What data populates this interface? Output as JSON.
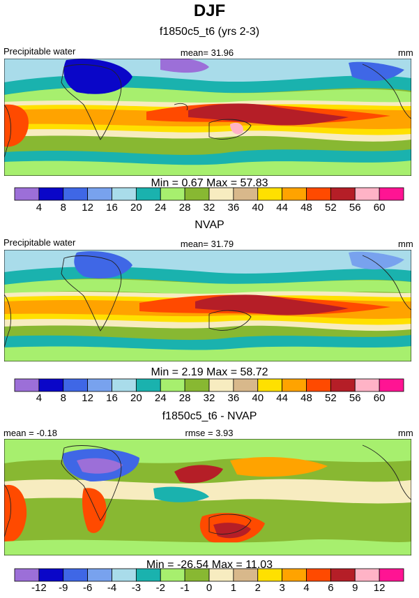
{
  "title": "DJF",
  "chart_data": [
    {
      "type": "heatmap",
      "title": "f1850c5_t6 (yrs 2-3)",
      "left_label": "Precipitable water",
      "center_label": "mean=  31.96",
      "right_label": "mm",
      "stats": "Min =   0.67 Max =  57.83",
      "min": 0.67,
      "max": 57.83,
      "mean": 31.96,
      "colorbar": {
        "levels": [
          "4",
          "8",
          "12",
          "16",
          "20",
          "24",
          "28",
          "32",
          "36",
          "40",
          "44",
          "48",
          "52",
          "56",
          "60"
        ],
        "colors": [
          "#9c6fd8",
          "#0a06c8",
          "#3f67e6",
          "#78a2ee",
          "#a9dcea",
          "#1ab2ae",
          "#a7ef6e",
          "#88b832",
          "#f7ecc0",
          "#d8b88b",
          "#ffe000",
          "#ffa300",
          "#ff4a00",
          "#b51e27",
          "#ffb3c6",
          "#ff1493"
        ]
      }
    },
    {
      "type": "heatmap",
      "title": "NVAP",
      "left_label": "Precipitable water",
      "center_label": "mean=  31.79",
      "right_label": "mm",
      "stats": "Min =   2.19 Max =  58.72",
      "min": 2.19,
      "max": 58.72,
      "mean": 31.79,
      "colorbar": {
        "levels": [
          "4",
          "8",
          "12",
          "16",
          "20",
          "24",
          "28",
          "32",
          "36",
          "40",
          "44",
          "48",
          "52",
          "56",
          "60"
        ],
        "colors": [
          "#9c6fd8",
          "#0a06c8",
          "#3f67e6",
          "#78a2ee",
          "#a9dcea",
          "#1ab2ae",
          "#a7ef6e",
          "#88b832",
          "#f7ecc0",
          "#d8b88b",
          "#ffe000",
          "#ffa300",
          "#ff4a00",
          "#b51e27",
          "#ffb3c6",
          "#ff1493"
        ]
      }
    },
    {
      "type": "heatmap",
      "title": "f1850c5_t6 - NVAP",
      "left_label": "mean =  -0.18",
      "center_label": "rmse =   3.93",
      "right_label": "mm",
      "stats": "Min = -26.54 Max =  11.03",
      "min": -26.54,
      "max": 11.03,
      "mean": -0.18,
      "rmse": 3.93,
      "colorbar": {
        "levels": [
          "-12",
          "-9",
          "-6",
          "-4",
          "-3",
          "-2",
          "-1",
          "0",
          "1",
          "2",
          "3",
          "4",
          "6",
          "9",
          "12"
        ],
        "colors": [
          "#9c6fd8",
          "#0a06c8",
          "#3f67e6",
          "#78a2ee",
          "#a9dcea",
          "#1ab2ae",
          "#a7ef6e",
          "#88b832",
          "#f7ecc0",
          "#d8b88b",
          "#ffe000",
          "#ffa300",
          "#ff4a00",
          "#b51e27",
          "#ffb3c6",
          "#ff1493"
        ]
      }
    }
  ]
}
